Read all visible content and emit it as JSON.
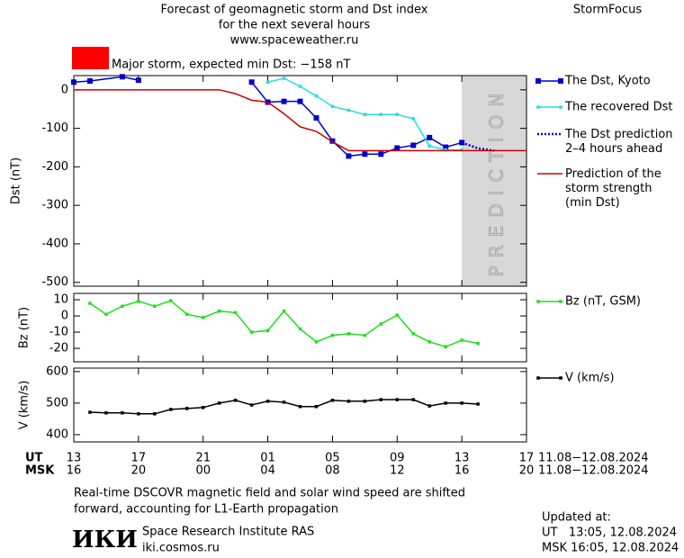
{
  "header": {
    "title_lines": [
      "Forecast of geomagnetic storm and Dst index",
      "for the next several hours",
      "www.spaceweather.ru"
    ],
    "brand": "StormFocus",
    "alert": {
      "color": "#ff0000",
      "text": "Major storm, expected min Dst: −158 nT"
    }
  },
  "chart_data": [
    {
      "type": "line",
      "ylabel": "Dst (nT)",
      "xlim": [
        0,
        28
      ],
      "ylim": [
        -510,
        37
      ],
      "yticks": [
        0,
        -100,
        -200,
        -300,
        -400,
        -500
      ],
      "shade": {
        "from": 24,
        "to": 28,
        "label": "PREDICTION",
        "color": "#d8d8d8"
      },
      "series": [
        {
          "name": "The Dst, Kyoto",
          "color": "#0000cc",
          "marker": "square",
          "x": [
            0,
            1,
            3,
            4,
            null,
            11,
            12,
            13,
            14,
            15,
            16,
            17,
            18,
            19,
            20,
            21,
            22,
            23,
            24
          ],
          "values": [
            20,
            23,
            34,
            25,
            null,
            20,
            -32,
            -30,
            -30,
            -73,
            -133,
            -172,
            -167,
            -167,
            -151,
            -144,
            -124,
            -149,
            -137
          ]
        },
        {
          "name": "The recovered Dst",
          "color": "#22e0e0",
          "marker": "small-square",
          "x": [
            12,
            13,
            14,
            15,
            16,
            17,
            18,
            19,
            20,
            21,
            22,
            23,
            24
          ],
          "values": [
            20,
            30,
            9,
            -16,
            -43,
            -53,
            -64,
            -64,
            -64,
            -75,
            -146,
            -156,
            -156
          ]
        },
        {
          "name": "The Dst prediction\n2–4 hours ahead",
          "color": "#0000cc",
          "style": "dotted",
          "x": [
            24,
            25,
            26
          ],
          "values": [
            -137,
            -152,
            -158
          ]
        },
        {
          "name": "Prediction of the\nstorm strength\n(min Dst)",
          "color": "#cc0000",
          "x": [
            0,
            9,
            10,
            11,
            12,
            13,
            14,
            15,
            16,
            17,
            28
          ],
          "values": [
            0,
            0,
            -10,
            -27,
            -32,
            -62,
            -96,
            -108,
            -135,
            -158,
            -158
          ]
        }
      ]
    },
    {
      "type": "line",
      "ylabel": "Bz (nT)",
      "xlim": [
        0,
        28
      ],
      "ylim": [
        -28.3,
        13.9
      ],
      "yticks": [
        10,
        0,
        -10,
        -20
      ],
      "x": [
        1,
        2,
        3,
        4,
        5,
        6,
        7,
        8,
        9,
        10,
        11,
        12,
        13,
        14,
        15,
        16,
        17,
        18,
        19,
        20,
        21,
        22,
        23,
        24,
        25
      ],
      "series": [
        {
          "name": "Bz (nT, GSM)",
          "color": "#22dd22",
          "marker": "small-square",
          "values": [
            7.8,
            1,
            6,
            9,
            6,
            9.4,
            1,
            -1,
            3,
            2,
            -10,
            -9,
            3,
            -8,
            -16,
            -12,
            -11,
            -12,
            -5,
            0.5,
            -11,
            -16,
            -19,
            -15,
            -17
          ]
        }
      ]
    },
    {
      "type": "line",
      "ylabel": "V (km/s)",
      "xlim": [
        0,
        28
      ],
      "ylim": [
        377,
        611
      ],
      "yticks": [
        600,
        500,
        400
      ],
      "x": [
        1,
        2,
        3,
        4,
        5,
        6,
        7,
        8,
        9,
        10,
        11,
        12,
        13,
        14,
        15,
        16,
        17,
        18,
        19,
        20,
        21,
        22,
        23,
        24,
        25
      ],
      "xticks": [
        {
          "value": 0,
          "label": "13"
        },
        {
          "value": 4,
          "label": "17"
        },
        {
          "value": 8,
          "label": "21"
        },
        {
          "value": 12,
          "label": "01"
        },
        {
          "value": 16,
          "label": "05"
        },
        {
          "value": 20,
          "label": "09"
        },
        {
          "value": 24,
          "label": "13"
        },
        {
          "value": 28,
          "label": "17"
        }
      ],
      "xticks_msk": [
        "16",
        "20",
        "00",
        "04",
        "08",
        "12",
        "16",
        "20"
      ],
      "row_labels": [
        "UT",
        "MSK"
      ],
      "date_ranges": [
        "11.08−12.08.2024",
        "11.08−12.08.2024"
      ],
      "series": [
        {
          "name": "V (km/s)",
          "color": "#000000",
          "marker": "small-square",
          "values": [
            471,
            469,
            469,
            466,
            466,
            480,
            483,
            486,
            500,
            509,
            494,
            506,
            503,
            489,
            489,
            509,
            506,
            506,
            511,
            511,
            511,
            491,
            500,
            500,
            497
          ]
        }
      ]
    }
  ],
  "footer": {
    "note_lines": [
      "Real-time DSCOVR magnetic field and solar wind speed are shifted",
      "forward, accounting for L1-Earth propagation"
    ],
    "logo": "ИКИ",
    "institute": "Space Research Institute RAS",
    "site": "iki.cosmos.ru",
    "updated": [
      "Updated at:",
      "UT   13:05, 12.08.2024",
      "MSK 16:05, 12.08.2024"
    ]
  }
}
